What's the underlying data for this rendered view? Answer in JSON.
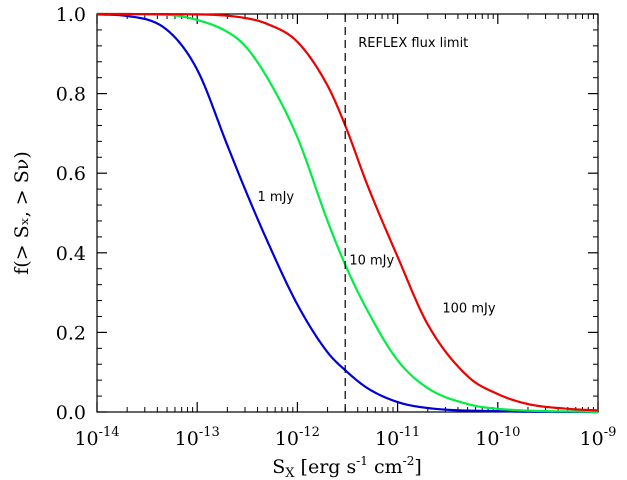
{
  "chart_data": {
    "type": "line",
    "x_scale": "log",
    "xlim": [
      1e-14,
      1e-09
    ],
    "ylim": [
      0.0,
      1.0
    ],
    "xlabel": {
      "main": "S",
      "sub": "X",
      "rest": " [erg s",
      "sup1": "-1",
      "mid": " cm",
      "sup2": "-2",
      "end": "]"
    },
    "ylabel": "f(> Sₓ, > Sν)",
    "x_ticks": [
      1e-14,
      1e-13,
      1e-12,
      1e-11,
      1e-10,
      1e-09
    ],
    "x_tick_labels": [
      {
        "base": "10",
        "exp": "-14"
      },
      {
        "base": "10",
        "exp": "-13"
      },
      {
        "base": "10",
        "exp": "-12"
      },
      {
        "base": "10",
        "exp": "-11"
      },
      {
        "base": "10",
        "exp": "-10"
      },
      {
        "base": "10",
        "exp": "-9"
      }
    ],
    "y_ticks": [
      0.0,
      0.2,
      0.4,
      0.6,
      0.8,
      1.0
    ],
    "y_tick_labels": [
      "0.0",
      "0.2",
      "0.4",
      "0.6",
      "0.8",
      "1.0"
    ],
    "series": [
      {
        "name": "1 mJy",
        "color": "#0000dd",
        "x": [
          1e-14,
          2e-14,
          5e-14,
          1e-13,
          2e-13,
          3e-13,
          5e-13,
          1e-12,
          2e-12,
          3e-12,
          5e-12,
          1e-11,
          2e-11,
          1e-10,
          1e-09
        ],
        "y": [
          0.999,
          0.995,
          0.96,
          0.86,
          0.67,
          0.56,
          0.43,
          0.27,
          0.15,
          0.105,
          0.06,
          0.025,
          0.01,
          0.002,
          0.0
        ]
      },
      {
        "name": "10 mJy",
        "color": "#00ee44",
        "x": [
          1e-14,
          5e-14,
          1e-13,
          2e-13,
          3e-13,
          5e-13,
          1e-12,
          2e-12,
          3e-12,
          5e-12,
          1e-11,
          2e-11,
          5e-11,
          1e-10,
          1e-09
        ],
        "y": [
          1.0,
          0.998,
          0.985,
          0.955,
          0.92,
          0.84,
          0.69,
          0.48,
          0.37,
          0.255,
          0.13,
          0.06,
          0.02,
          0.008,
          0.0
        ]
      },
      {
        "name": "100 mJy",
        "color": "#ee0000",
        "x": [
          1e-14,
          1e-13,
          3e-13,
          5e-13,
          1e-12,
          2e-12,
          3e-12,
          5e-12,
          1e-11,
          2e-11,
          5e-11,
          1e-10,
          2e-10,
          5e-10,
          1e-09
        ],
        "y": [
          1.0,
          0.999,
          0.99,
          0.975,
          0.93,
          0.82,
          0.72,
          0.57,
          0.39,
          0.22,
          0.09,
          0.045,
          0.02,
          0.008,
          0.004
        ]
      }
    ],
    "reference_line": {
      "x": 3e-12,
      "label": "REFLEX flux limit",
      "style": "dashed"
    },
    "annotations": [
      {
        "text": "1 mJy",
        "x": 4e-13,
        "y": 0.53
      },
      {
        "text": "10 mJy",
        "x": 3.3e-12,
        "y": 0.37
      },
      {
        "text": "100 mJy",
        "x": 2.8e-11,
        "y": 0.25
      }
    ],
    "grid": false,
    "legend": "none"
  }
}
